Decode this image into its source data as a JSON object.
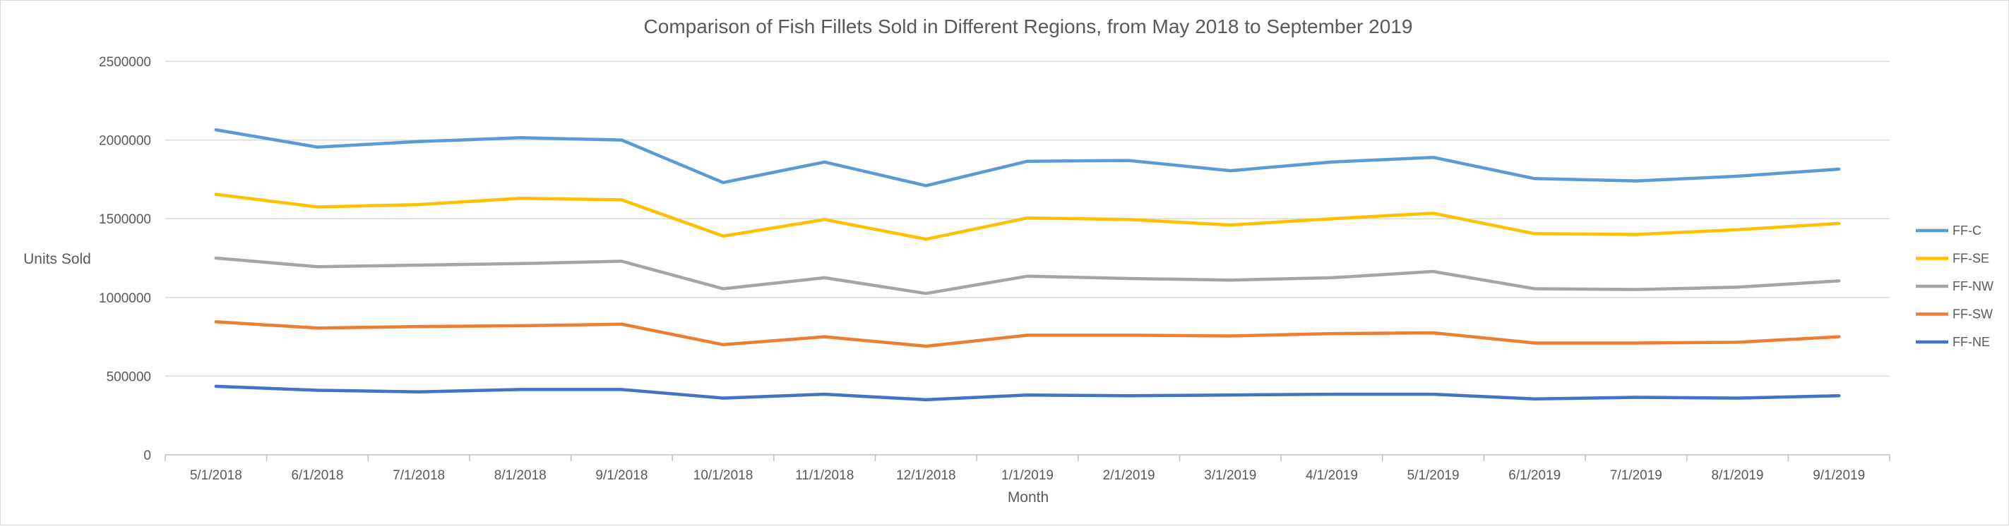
{
  "chart_data": {
    "type": "line",
    "title": "Comparison of Fish Fillets Sold in Different Regions, from May 2018 to September 2019",
    "xlabel": "Month",
    "ylabel": "Units Sold",
    "ylim": [
      0,
      2500000
    ],
    "yticks": [
      "0",
      "500000",
      "1000000",
      "1500000",
      "2000000",
      "2500000"
    ],
    "ytick_values": [
      0,
      500000,
      1000000,
      1500000,
      2000000,
      2500000
    ],
    "grid": true,
    "legend_position": "right",
    "categories": [
      "5/1/2018",
      "6/1/2018",
      "7/1/2018",
      "8/1/2018",
      "9/1/2018",
      "10/1/2018",
      "11/1/2018",
      "12/1/2018",
      "1/1/2019",
      "2/1/2019",
      "3/1/2019",
      "4/1/2019",
      "5/1/2019",
      "6/1/2019",
      "7/1/2019",
      "8/1/2019",
      "9/1/2019"
    ],
    "series": [
      {
        "name": "FF-C",
        "color": "#5b9bd5",
        "values": [
          2065000,
          1955000,
          1990000,
          2015000,
          2000000,
          1730000,
          1860000,
          1710000,
          1865000,
          1870000,
          1805000,
          1860000,
          1890000,
          1755000,
          1740000,
          1770000,
          1815000
        ]
      },
      {
        "name": "FF-SE",
        "color": "#ffc000",
        "values": [
          1655000,
          1575000,
          1590000,
          1630000,
          1620000,
          1390000,
          1495000,
          1370000,
          1505000,
          1495000,
          1460000,
          1500000,
          1535000,
          1405000,
          1400000,
          1430000,
          1470000
        ]
      },
      {
        "name": "FF-NW",
        "color": "#a5a5a5",
        "values": [
          1250000,
          1195000,
          1205000,
          1215000,
          1230000,
          1055000,
          1125000,
          1025000,
          1135000,
          1120000,
          1110000,
          1125000,
          1165000,
          1055000,
          1050000,
          1065000,
          1105000
        ]
      },
      {
        "name": "FF-SW",
        "color": "#ed7d31",
        "values": [
          845000,
          805000,
          815000,
          820000,
          830000,
          700000,
          750000,
          690000,
          760000,
          760000,
          755000,
          770000,
          775000,
          710000,
          710000,
          715000,
          750000
        ]
      },
      {
        "name": "FF-NE",
        "color": "#4472c4",
        "values": [
          435000,
          410000,
          400000,
          415000,
          415000,
          360000,
          385000,
          350000,
          380000,
          375000,
          380000,
          385000,
          385000,
          355000,
          365000,
          360000,
          375000
        ]
      }
    ]
  }
}
